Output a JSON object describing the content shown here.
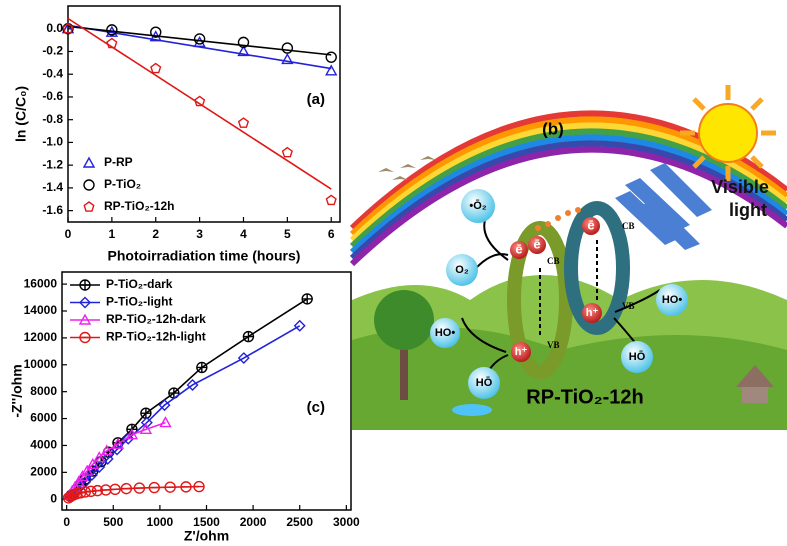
{
  "chart_data": [
    {
      "type": "scatter",
      "annotation": "(a)",
      "x_label": "Photoirradiation time (hours)",
      "y_label": "ln (C/C₀)",
      "x": [
        0,
        1,
        2,
        3,
        4,
        5,
        6
      ],
      "fit_x": [
        0,
        6
      ],
      "xlim": [
        0,
        6.2
      ],
      "xticks": [
        0,
        1,
        2,
        3,
        4,
        5,
        6
      ],
      "ylim": [
        -1.7,
        0.2
      ],
      "yticks": [
        {
          "value": 0,
          "label": "0.0"
        },
        -0.2,
        -0.4,
        -0.6,
        -0.8,
        {
          "value": -1,
          "label": "-1.0"
        },
        -1.2,
        -1.4,
        -1.6
      ],
      "legend": "lower left",
      "series": [
        {
          "name": "P-RP",
          "color": "#2222dd",
          "marker": "triangle",
          "values": [
            0,
            -0.03,
            -0.07,
            -0.12,
            -0.2,
            -0.27,
            -0.37
          ],
          "fit": [
            0.03,
            -0.35
          ]
        },
        {
          "name": "P-TiO₂",
          "color": "#000000",
          "marker": "circle",
          "values": [
            0,
            -0.01,
            -0.03,
            -0.09,
            -0.12,
            -0.17,
            -0.25
          ],
          "fit": [
            0.02,
            -0.23
          ]
        },
        {
          "name": "RP-TiO₂-12h",
          "color": "#e01818",
          "marker": "pentagon",
          "values": [
            0,
            -0.13,
            -0.35,
            -0.64,
            -0.83,
            -1.09,
            -1.51
          ],
          "fit": [
            0.09,
            -1.41
          ]
        }
      ]
    },
    {
      "type": "scatter",
      "annotation": "(c)",
      "x_label": "Z'/ohm",
      "y_label": "-Z''/ohm",
      "xlim": [
        -50,
        3050
      ],
      "xticks": [
        0,
        500,
        1000,
        1500,
        2000,
        2500,
        3000
      ],
      "ylim": [
        -800,
        16900
      ],
      "yticks": [
        0,
        2000,
        4000,
        6000,
        8000,
        10000,
        12000,
        14000,
        16000
      ],
      "legend": "upper left",
      "series": [
        {
          "name": "P-TiO₂-dark",
          "color": "#000000",
          "marker": "circle-plus",
          "x": [
            50,
            100,
            150,
            200,
            280,
            370,
            450,
            550,
            700,
            850,
            1150,
            1450,
            1950,
            2580
          ],
          "values": [
            300,
            700,
            1100,
            1500,
            2100,
            2800,
            3500,
            4200,
            5200,
            6400,
            7900,
            9800,
            12100,
            14900
          ]
        },
        {
          "name": "P-TiO₂-light",
          "color": "#2222dd",
          "marker": "diamond",
          "x": [
            40,
            90,
            140,
            200,
            270,
            350,
            440,
            540,
            660,
            860,
            1050,
            1350,
            1900,
            2500
          ],
          "values": [
            200,
            500,
            900,
            1300,
            1800,
            2400,
            3000,
            3700,
            4500,
            5700,
            7000,
            8500,
            10500,
            12900
          ]
        },
        {
          "name": "RP-TiO₂-12h-dark",
          "color": "#ee22ee",
          "marker": "triangle",
          "x": [
            30,
            60,
            90,
            130,
            170,
            220,
            280,
            350,
            430,
            550,
            700,
            850,
            1060
          ],
          "values": [
            300,
            600,
            900,
            1300,
            1700,
            2100,
            2600,
            3100,
            3600,
            4100,
            4800,
            5200,
            5700
          ]
        },
        {
          "name": "RP-TiO₂-12h-light",
          "color": "#e01818",
          "marker": "circle-dash",
          "x": [
            20,
            40,
            60,
            80,
            110,
            150,
            200,
            260,
            330,
            420,
            520,
            640,
            780,
            940,
            1110,
            1280,
            1420
          ],
          "values": [
            100,
            200,
            280,
            350,
            420,
            480,
            540,
            590,
            640,
            690,
            740,
            790,
            830,
            870,
            900,
            920,
            940
          ]
        }
      ]
    }
  ],
  "diagram": {
    "panel": "(b)",
    "light": [
      "Visible",
      "light"
    ],
    "bands": [
      "CB",
      "VB",
      "CB",
      "VB"
    ],
    "electrons": [
      "ē",
      "ē",
      "ē"
    ],
    "holes": [
      "h⁺",
      "h⁺"
    ],
    "species": [
      "•Ō₂",
      "O₂",
      "HO•",
      "HO•",
      "HŌ",
      "HŌ"
    ],
    "catalyst": "RP-TiO₂-12h"
  }
}
